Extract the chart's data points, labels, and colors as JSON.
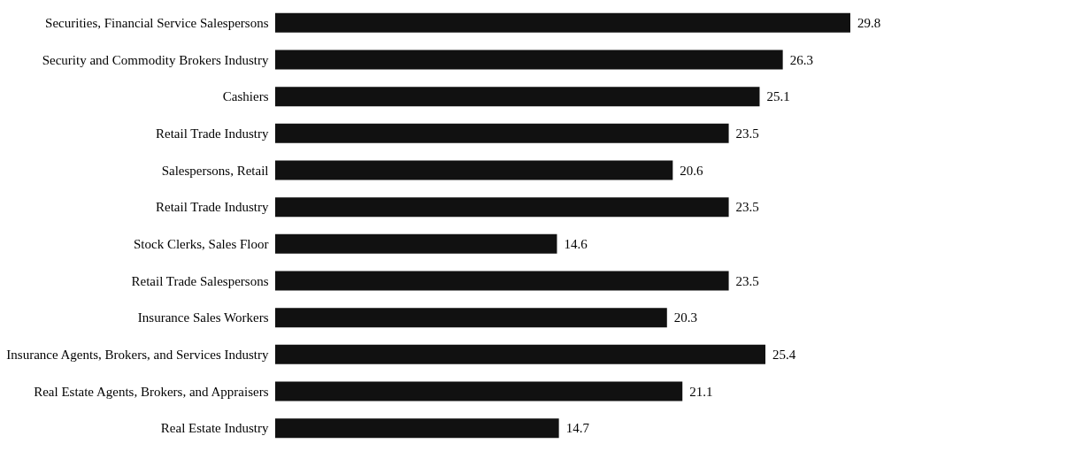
{
  "chart_data": {
    "type": "bar",
    "orientation": "horizontal",
    "data_labels": true,
    "color": "#111111",
    "categories": [
      "Securities, Financial Service Salespersons",
      "Security and Commodity Brokers Industry",
      "Cashiers",
      "Retail Trade Industry",
      "Salespersons, Retail",
      "Retail Trade Industry",
      "Stock Clerks, Sales Floor",
      "Retail Trade Salespersons",
      "Insurance Sales Workers",
      "Insurance Agents, Brokers, and Services Industry",
      "Real Estate Agents, Brokers, and Appraisers",
      "Real Estate Industry"
    ],
    "values": [
      29.8,
      26.3,
      25.1,
      23.5,
      20.6,
      23.5,
      14.6,
      23.5,
      20.3,
      25.4,
      21.1,
      14.7
    ]
  }
}
